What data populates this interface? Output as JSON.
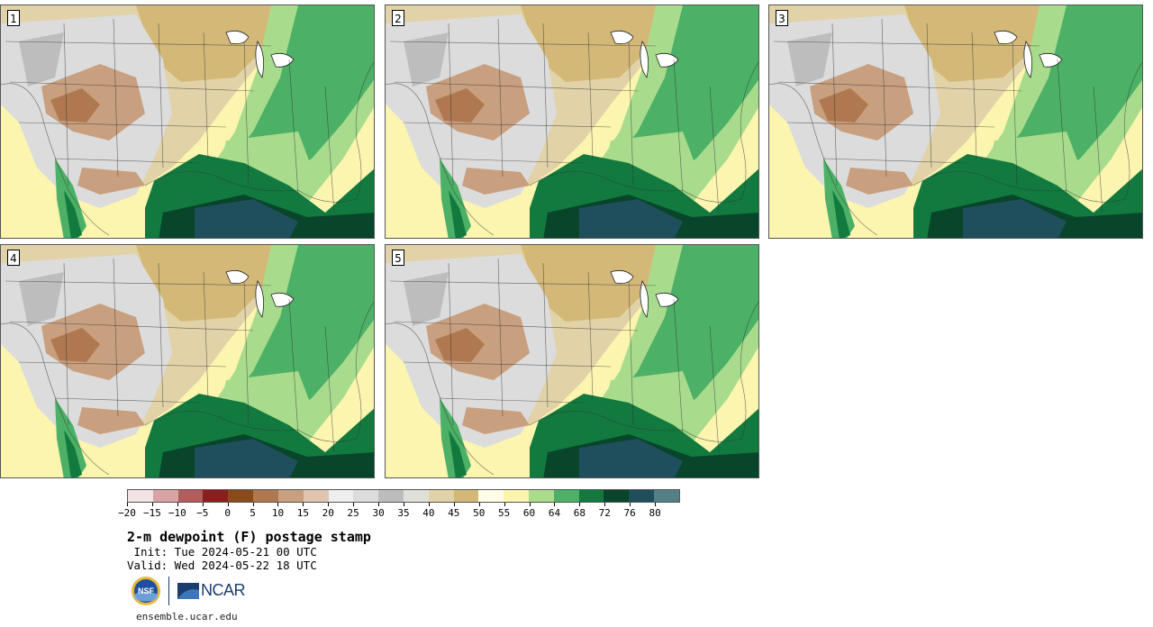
{
  "panels": [
    {
      "label": "1"
    },
    {
      "label": "2"
    },
    {
      "label": "3"
    },
    {
      "label": "4"
    },
    {
      "label": "5"
    }
  ],
  "colorbar": {
    "colors": [
      "#f2e4e4",
      "#d8a3a3",
      "#b45b5b",
      "#8c1d1d",
      "#8a4a1a",
      "#b07850",
      "#c8a080",
      "#e0c4b0",
      "#eeeeee",
      "#dcdcdc",
      "#bdbdbd",
      "#e0e0d8",
      "#e2d2a8",
      "#d4b878",
      "#fffde8",
      "#fbf5b0",
      "#a8dc8c",
      "#4cb066",
      "#127a3e",
      "#08452a",
      "#1f4e5c",
      "#537f86"
    ],
    "tick_labels": [
      "−20",
      "−15",
      "−10",
      "−5",
      "0",
      "5",
      "10",
      "15",
      "20",
      "25",
      "30",
      "35",
      "40",
      "45",
      "50",
      "55",
      "60",
      "64",
      "68",
      "72",
      "76",
      "80"
    ]
  },
  "title": "2-m dewpoint (F) postage stamp",
  "init_line": " Init: Tue 2024-05-21 00 UTC",
  "valid_line": "Valid: Wed 2024-05-22 18 UTC",
  "logos": {
    "nsf": "NSF",
    "ncar": "NCAR"
  },
  "website": "ensemble.ucar.edu"
}
